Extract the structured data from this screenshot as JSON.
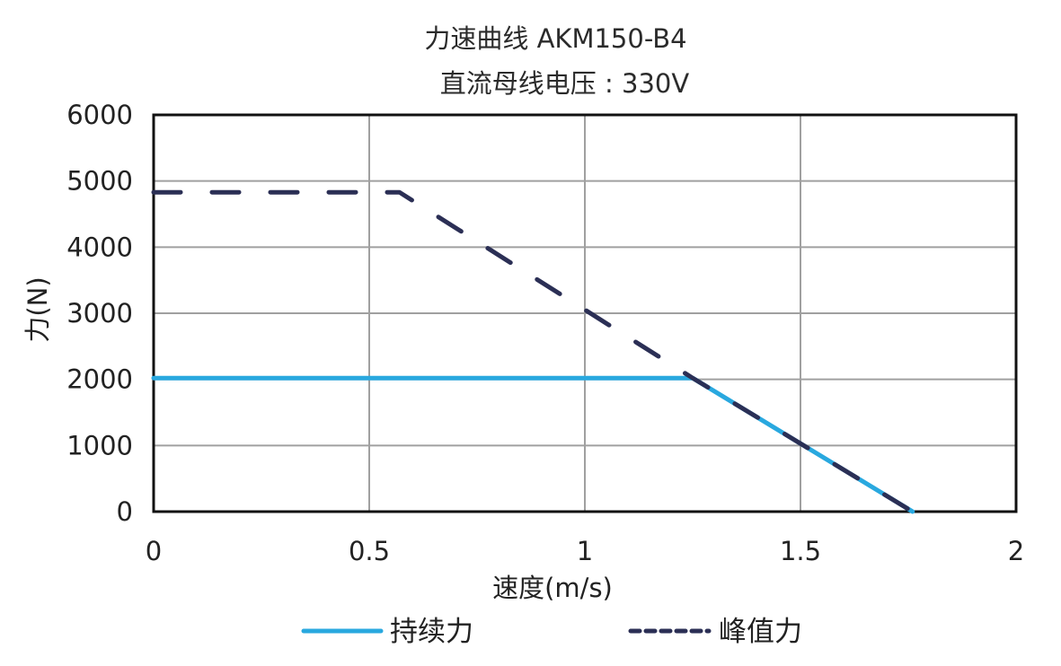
{
  "chart_data": {
    "type": "line",
    "title": "力速曲线 AKM150-B4",
    "subtitle": "直流母线电压 : 330V",
    "xlabel": "速度(m/s)",
    "ylabel": "力(N)",
    "xlim": [
      0,
      2
    ],
    "ylim": [
      0,
      6000
    ],
    "xticks": [
      "0",
      "0.5",
      "1",
      "1.5",
      "2"
    ],
    "yticks": [
      "0",
      "1000",
      "2000",
      "3000",
      "4000",
      "5000",
      "6000"
    ],
    "grid": true,
    "legend_position": "bottom",
    "series": [
      {
        "name": "持续力",
        "style": "solid",
        "color": "#29a8df",
        "x": [
          0,
          1.25,
          1.76
        ],
        "y": [
          2020,
          2020,
          0
        ]
      },
      {
        "name": "峰值力",
        "style": "dashed",
        "color": "#2b2f55",
        "x": [
          0,
          0.57,
          1.25,
          1.76
        ],
        "y": [
          4830,
          4830,
          2020,
          0
        ]
      }
    ]
  },
  "colors": {
    "continuous": "#29a8df",
    "peak": "#2b2f55",
    "grid": "#a0a0a0",
    "frame": "#111111"
  }
}
